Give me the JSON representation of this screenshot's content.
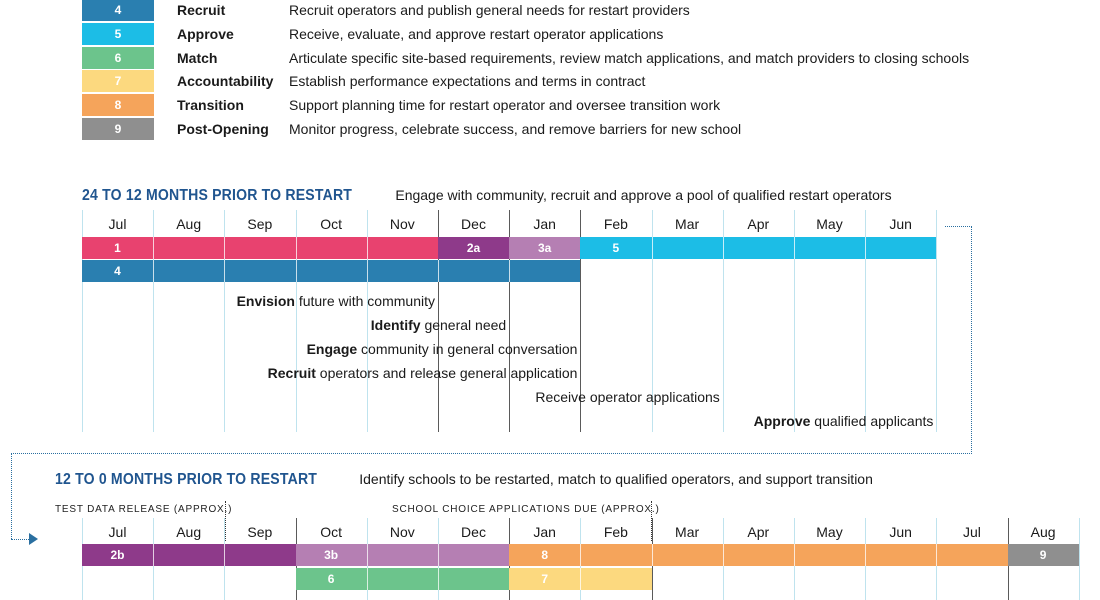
{
  "legend": [
    {
      "num": "4",
      "name": "Recruit",
      "desc": "Recruit operators and publish general needs for restart providers",
      "color": "#2a7fb0"
    },
    {
      "num": "5",
      "name": "Approve",
      "desc": "Receive, evaluate, and approve restart operator applications",
      "color": "#1cbde6"
    },
    {
      "num": "6",
      "name": "Match",
      "desc": "Articulate specific site-based requirements, review match applications, and match providers to closing schools",
      "color": "#6cc48c"
    },
    {
      "num": "7",
      "name": "Accountability",
      "desc": "Establish performance expectations and terms in contract",
      "color": "#fcd97f"
    },
    {
      "num": "8",
      "name": "Transition",
      "desc": "Support planning time for restart operator and oversee transition work",
      "color": "#f5a45b"
    },
    {
      "num": "9",
      "name": "Post-Opening",
      "desc": "Monitor progress, celebrate success, and remove barriers for new school",
      "color": "#8f8f8f"
    }
  ],
  "phase1": {
    "title": "24 TO 12 MONTHS PRIOR TO RESTART",
    "subtitle": "Engage with community, recruit and approve a pool of qualified restart operators",
    "months": [
      "Jul",
      "Aug",
      "Sep",
      "Oct",
      "Nov",
      "Dec",
      "Jan",
      "Feb",
      "Mar",
      "Apr",
      "May",
      "Jun"
    ],
    "row1": [
      {
        "label": "1",
        "start": 0,
        "span": 5,
        "color": "#e8426f"
      },
      {
        "label": "2a",
        "start": 5,
        "span": 1,
        "color": "#8e3a8a"
      },
      {
        "label": "3a",
        "start": 6,
        "span": 1,
        "color": "#b57fb3"
      },
      {
        "label": "5",
        "start": 7,
        "span": 5,
        "color": "#1cbde6"
      }
    ],
    "row2": [
      {
        "label": "4",
        "start": 0,
        "span": 7,
        "color": "#2a7fb0"
      }
    ],
    "annotations": [
      {
        "bold": "Envision",
        "rest": " future with community",
        "end": 5
      },
      {
        "bold": "Identify",
        "rest": " general need",
        "end": 6
      },
      {
        "bold": "Engage",
        "rest": " community in general conversation",
        "end": 7
      },
      {
        "bold": "Recruit",
        "rest": " operators and release general application",
        "end": 7
      },
      {
        "bold": "",
        "rest": "Receive operator applications",
        "end": 9
      },
      {
        "bold": "Approve",
        "rest": " qualified applicants",
        "end": 12
      }
    ]
  },
  "phase2": {
    "title": "12 TO 0 MONTHS PRIOR TO RESTART",
    "subtitle": "Identify schools to be restarted, match to qualified operators, and support transition",
    "note_left": "TEST DATA RELEASE (APPROX.)",
    "note_right": "SCHOOL CHOICE APPLICATIONS DUE (APPROX.)",
    "months": [
      "Jul",
      "Aug",
      "Sep",
      "Oct",
      "Nov",
      "Dec",
      "Jan",
      "Feb",
      "Mar",
      "Apr",
      "May",
      "Jun",
      "Jul",
      "Aug"
    ],
    "row1": [
      {
        "label": "2b",
        "start": 0,
        "span": 3,
        "color": "#8e3a8a"
      },
      {
        "label": "3b",
        "start": 3,
        "span": 3,
        "color": "#b57fb3"
      },
      {
        "label": "8",
        "start": 6,
        "span": 7,
        "color": "#f5a45b"
      },
      {
        "label": "9",
        "start": 13,
        "span": 1,
        "color": "#8f8f8f"
      }
    ],
    "row2": [
      {
        "label": "6",
        "start": 3,
        "span": 3,
        "color": "#6cc48c"
      },
      {
        "label": "7",
        "start": 6,
        "span": 2,
        "color": "#fcd97f"
      }
    ]
  }
}
